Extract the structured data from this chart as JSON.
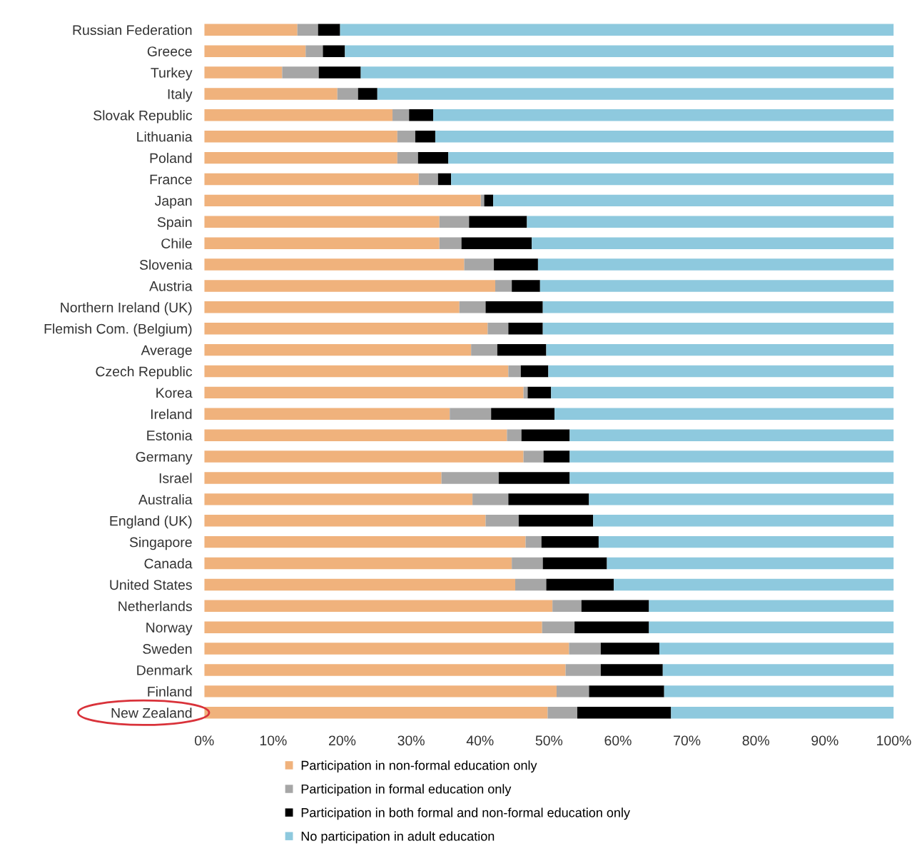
{
  "chart_data": {
    "type": "bar",
    "orientation": "horizontal",
    "stacked": true,
    "categories": [
      "Russian Federation",
      "Greece",
      "Turkey",
      "Italy",
      "Slovak Republic",
      "Lithuania",
      "Poland",
      "France",
      "Japan",
      "Spain",
      "Chile",
      "Slovenia",
      "Austria",
      "Northern Ireland (UK)",
      "Flemish Com. (Belgium)",
      "Average",
      "Czech Republic",
      "Korea",
      "Ireland",
      "Estonia",
      "Germany",
      "Israel",
      "Australia",
      "England (UK)",
      "Singapore",
      "Canada",
      "United States",
      "Netherlands",
      "Norway",
      "Sweden",
      "Denmark",
      "Finland",
      "New Zealand"
    ],
    "series": [
      {
        "name": "Participation in non-formal education only",
        "color": "#f0b27c",
        "values": [
          13.5,
          14.7,
          11.3,
          19.3,
          27.3,
          28,
          28,
          31.1,
          40.1,
          34.1,
          34.1,
          37.7,
          42.2,
          37,
          41.1,
          38.7,
          44.1,
          46.3,
          35.6,
          43.9,
          46.3,
          34.4,
          38.9,
          40.8,
          46.6,
          44.6,
          45.1,
          50.5,
          49,
          52.9,
          52.4,
          51.1,
          49.8
        ]
      },
      {
        "name": "Participation in formal education only",
        "color": "#a6a6a6",
        "values": [
          3,
          2.5,
          5.3,
          3,
          2.4,
          2.6,
          3,
          2.8,
          0.5,
          4.3,
          3.2,
          4.3,
          2.4,
          3.8,
          3,
          3.8,
          1.8,
          0.6,
          6,
          2.1,
          2.9,
          8.3,
          5.2,
          4.8,
          2.3,
          4.5,
          4.5,
          4.2,
          4.7,
          4.6,
          5.1,
          4.7,
          4.3
        ]
      },
      {
        "name": "Participation in both formal and non-formal education only",
        "color": "#000000",
        "values": [
          3.2,
          3.2,
          6.1,
          2.8,
          3.5,
          2.9,
          4.4,
          1.9,
          1.3,
          8.4,
          10.2,
          6.4,
          4.1,
          8.3,
          5,
          7.1,
          4,
          3.4,
          9.2,
          7,
          3.8,
          10.3,
          11.7,
          10.8,
          8.3,
          9.3,
          9.8,
          9.8,
          10.8,
          8.5,
          9,
          10.9,
          13.6
        ]
      },
      {
        "name": "No participation in adult education",
        "color": "#8ec9de",
        "values": [
          80.3,
          79.6,
          77.3,
          74.9,
          66.8,
          66.5,
          64.6,
          64.2,
          58.1,
          53.2,
          52.5,
          51.6,
          51.3,
          50.9,
          50.9,
          50.4,
          50.1,
          49.7,
          49.2,
          47,
          47,
          47,
          44.2,
          43.6,
          42.8,
          41.6,
          40.6,
          35.5,
          35.5,
          34,
          33.5,
          33.3,
          32.3
        ]
      }
    ],
    "xlim": [
      0,
      100
    ],
    "xticks": [
      {
        "value": 0,
        "label": "0%"
      },
      {
        "value": 10,
        "label": "10%"
      },
      {
        "value": 20,
        "label": "20%"
      },
      {
        "value": 30,
        "label": "30%"
      },
      {
        "value": 40,
        "label": "40%"
      },
      {
        "value": 50,
        "label": "50%"
      },
      {
        "value": 60,
        "label": "60%"
      },
      {
        "value": 70,
        "label": "70%"
      },
      {
        "value": 80,
        "label": "80%"
      },
      {
        "value": 90,
        "label": "90%"
      },
      {
        "value": 100,
        "label": "100%"
      }
    ],
    "grid": false,
    "legend": "bottom"
  }
}
